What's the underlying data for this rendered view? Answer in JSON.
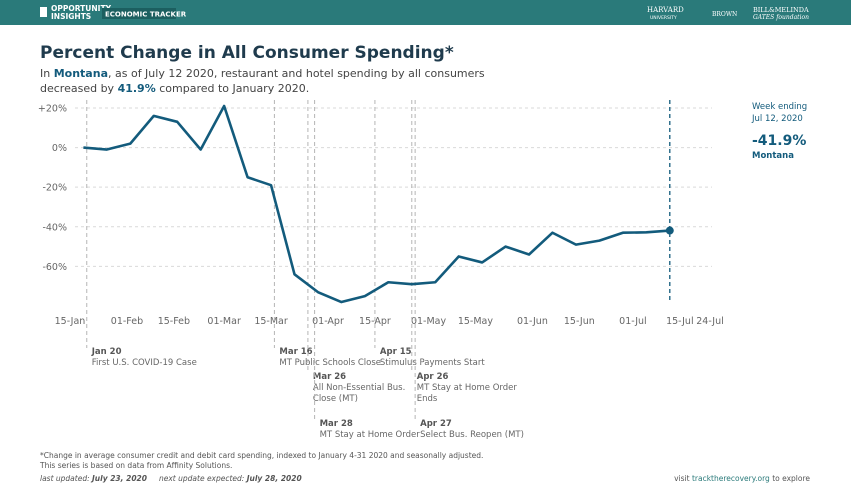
{
  "header": {
    "brand": [
      "OPPORTUNITY",
      "INSIGHTS"
    ],
    "product": "ECONOMIC TRACKER",
    "partners": [
      "HARVARD",
      "UNIVERSITY",
      "BROWN",
      "BILL&MELINDA",
      "GATES foundation"
    ]
  },
  "chart_data": {
    "type": "line",
    "title": "Percent Change in All Consumer Spending*",
    "subtitle": [
      [
        "In ",
        "Montana",
        ", as of July 12 2020, restaurant and hotel spending by all consumers"
      ],
      [
        "decreased by ",
        "41.9%",
        " compared to January 2020."
      ]
    ],
    "x": [
      19,
      26,
      33,
      40,
      47,
      54,
      61,
      68,
      75,
      82,
      89,
      96,
      103,
      110,
      117,
      124,
      131,
      138,
      145,
      152,
      159,
      166,
      173,
      180,
      187,
      194
    ],
    "values": [
      0,
      -1,
      2,
      16,
      13,
      -1,
      21,
      -15,
      -19,
      -64,
      -73,
      -78,
      -75,
      -68,
      -69,
      -68,
      -55,
      -58,
      -50,
      -54,
      -43,
      -49,
      -47,
      -43,
      -42.8,
      -41.9
    ],
    "color": "#135b7c",
    "xlim": [
      15,
      206
    ],
    "xticks": [
      {
        "value": 15,
        "label": "15-Jan"
      },
      {
        "value": 32,
        "label": "01-Feb"
      },
      {
        "value": 46,
        "label": "15-Feb"
      },
      {
        "value": 61,
        "label": "01-Mar"
      },
      {
        "value": 75,
        "label": "15-Mar"
      },
      {
        "value": 92,
        "label": "01-Apr"
      },
      {
        "value": 106,
        "label": "15-Apr"
      },
      {
        "value": 122,
        "label": "01-May"
      },
      {
        "value": 136,
        "label": "15-May"
      },
      {
        "value": 153,
        "label": "01-Jun"
      },
      {
        "value": 167,
        "label": "15-Jun"
      },
      {
        "value": 183,
        "label": "01-Jul"
      },
      {
        "value": 197,
        "label": "15-Jul"
      },
      {
        "value": 206,
        "label": "24-Jul"
      }
    ],
    "ylim": [
      -80,
      22
    ],
    "yticks": [
      {
        "value": 20,
        "label": "+20%"
      },
      {
        "value": 0,
        "label": "0%"
      },
      {
        "value": -20,
        "label": "-20%"
      },
      {
        "value": -40,
        "label": "-40%"
      },
      {
        "value": -60,
        "label": "-60%"
      }
    ],
    "grid": true,
    "events": [
      {
        "x": 20,
        "date": "Jan 20",
        "lines": [
          "First U.S. COVID-19 Case"
        ]
      },
      {
        "x": 76,
        "date": "Mar 16",
        "lines": [
          "MT Public Schools Close"
        ]
      },
      {
        "x": 86,
        "date": "Mar 26",
        "lines": [
          "All Non-Essential Bus.",
          "Close (MT)"
        ]
      },
      {
        "x": 88,
        "date": "Mar 28",
        "lines": [
          "MT Stay at Home Order"
        ]
      },
      {
        "x": 106,
        "date": "Apr 15",
        "lines": [
          "Stimulus Payments Start"
        ]
      },
      {
        "x": 117,
        "date": "Apr 26",
        "lines": [
          "MT Stay at Home Order",
          "Ends"
        ]
      },
      {
        "x": 118,
        "date": "Apr 27",
        "lines": [
          "Select Bus. Reopen (MT)"
        ]
      }
    ],
    "callout": {
      "label": [
        "Week ending",
        "Jul 12, 2020"
      ],
      "value_label": "-41.9%",
      "place": "Montana"
    }
  },
  "footer": {
    "notes": [
      "*Change in average consumer credit and debit card spending, indexed to January 4-31 2020 and seasonally adjusted.",
      "This series is based on data from Affinity Solutions."
    ],
    "updated": [
      "last updated: ",
      "July 23, 2020",
      "next update expected: ",
      "July 28, 2020"
    ],
    "visit": [
      "visit ",
      "tracktherecovery.org",
      " to explore"
    ]
  }
}
